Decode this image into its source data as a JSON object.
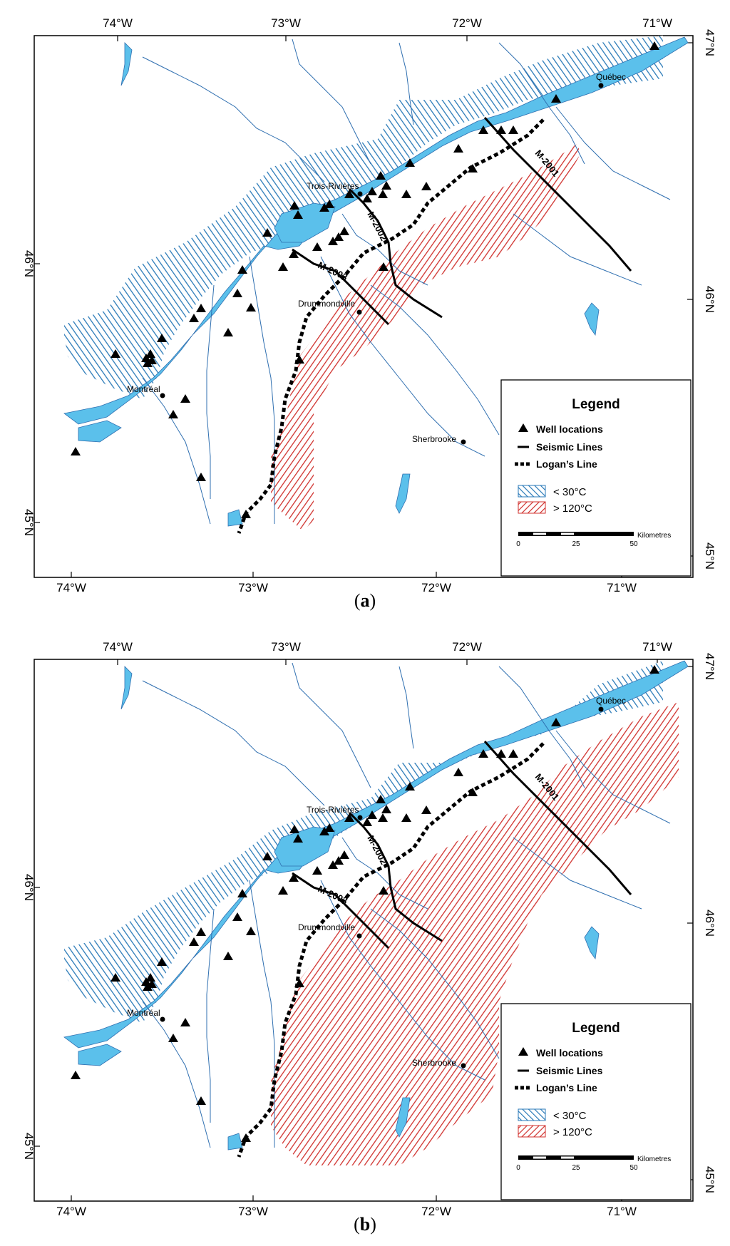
{
  "panels": [
    {
      "id": "a",
      "caption_label": "a",
      "lon_labels": [
        "74°W",
        "73°W",
        "72°W",
        "71°W"
      ],
      "lat_labels": [
        "47°N",
        "46°N",
        "45°N"
      ],
      "cities": [
        "Québec",
        "Trois-Rivières",
        "Drummondville",
        "Montréal",
        "Sherbrooke"
      ],
      "seismic_lines": [
        "M-2001",
        "M-2002",
        "M-2003"
      ],
      "legend": {
        "title": "Legend",
        "wells": "Well locations",
        "seismic": "Seismic Lines",
        "logan": "Logan’s Line",
        "cold": "< 30°C",
        "hot": "> 120°C",
        "scale_unit": "Kilometres",
        "scale_ticks": [
          "0",
          "25",
          "50"
        ]
      }
    },
    {
      "id": "b",
      "caption_label": "b",
      "lon_labels": [
        "74°W",
        "73°W",
        "72°W",
        "71°W"
      ],
      "lat_labels": [
        "47°N",
        "46°N",
        "45°N"
      ],
      "cities": [
        "Québec",
        "Trois-Rivières",
        "Drummondville",
        "Montréal",
        "Sherbrooke"
      ],
      "seismic_lines": [
        "M-2001",
        "M-2002",
        "M-2003"
      ],
      "legend": {
        "title": "Legend",
        "wells": "Well locations",
        "seismic": "Seismic Lines",
        "logan": "Logan’s Line",
        "cold": "< 30°C",
        "hot": "> 120°C",
        "scale_unit": "Kilometres",
        "scale_ticks": [
          "0",
          "25",
          "50"
        ]
      }
    }
  ],
  "colors": {
    "water": "#5bc0eb",
    "river": "#2f6fb0",
    "cold_hatch": "#2a7ab8",
    "hot_hatch": "#d0312d",
    "frame": "#000000"
  },
  "icons": [
    "well-triangle-icon",
    "city-dot-icon"
  ]
}
